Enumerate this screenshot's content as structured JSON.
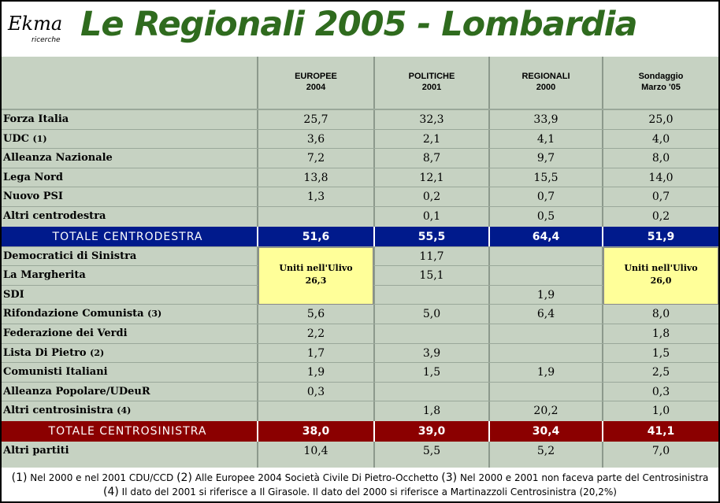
{
  "header": {
    "logo_main": "Ekma",
    "logo_sub": "ricerche",
    "title": "Le Regionali 2005 - Lombardia"
  },
  "columns": [
    {
      "line1": "EUROPEE",
      "line2": "2004"
    },
    {
      "line1": "POLITICHE",
      "line2": "2001"
    },
    {
      "line1": "REGIONALI",
      "line2": "2000"
    },
    {
      "line1": "Sondaggio",
      "line2": "Marzo '05"
    }
  ],
  "centrodestra": [
    {
      "label": "Forza Italia",
      "note": "",
      "values": [
        "25,7",
        "32,3",
        "33,9",
        "25,0"
      ]
    },
    {
      "label": "UDC",
      "note": "(1)",
      "values": [
        "3,6",
        "2,1",
        "4,1",
        "4,0"
      ]
    },
    {
      "label": "Alleanza Nazionale",
      "note": "",
      "values": [
        "7,2",
        "8,7",
        "9,7",
        "8,0"
      ]
    },
    {
      "label": "Lega Nord",
      "note": "",
      "values": [
        "13,8",
        "12,1",
        "15,5",
        "14,0"
      ]
    },
    {
      "label": "Nuovo PSI",
      "note": "",
      "values": [
        "1,3",
        "0,2",
        "0,7",
        "0,7"
      ]
    },
    {
      "label": "Altri centrodestra",
      "note": "",
      "values": [
        "",
        "0,1",
        "0,5",
        "0,2"
      ]
    }
  ],
  "totale_centrodestra": {
    "label": "TOTALE CENTRODESTRA",
    "values": [
      "51,6",
      "55,5",
      "64,4",
      "51,9"
    ],
    "color": "#001a8c"
  },
  "centrosinistra": [
    {
      "label": "Democratici di Sinistra",
      "note": "",
      "values": [
        "",
        "11,7",
        "",
        ""
      ]
    },
    {
      "label": "La Margherita",
      "note": "",
      "values": [
        "",
        "15,1",
        "",
        ""
      ]
    },
    {
      "label": "SDI",
      "note": "",
      "values": [
        "",
        "",
        "1,9",
        ""
      ]
    },
    {
      "label": "Rifondazione Comunista",
      "note": "(3)",
      "values": [
        "5,6",
        "5,0",
        "6,4",
        "8,0"
      ]
    },
    {
      "label": "Federazione dei Verdi",
      "note": "",
      "values": [
        "2,2",
        "",
        "",
        "1,8"
      ]
    },
    {
      "label": "Lista Di Pietro",
      "note": "(2)",
      "values": [
        "1,7",
        "3,9",
        "",
        "1,5"
      ]
    },
    {
      "label": "Comunisti Italiani",
      "note": "",
      "values": [
        "1,9",
        "1,5",
        "1,9",
        "2,5"
      ]
    },
    {
      "label": "Alleanza Popolare/UDeuR",
      "note": "",
      "values": [
        "0,3",
        "",
        "",
        "0,3"
      ]
    },
    {
      "label": "Altri centrosinistra",
      "note": "(4)",
      "values": [
        "",
        "1,8",
        "20,2",
        "1,0"
      ]
    }
  ],
  "ulivo_europee": {
    "line1": "Uniti nell'Ulivo",
    "line2": "26,3"
  },
  "ulivo_sondaggio": {
    "line1": "Uniti nell'Ulivo",
    "line2": "26,0"
  },
  "totale_centrosinistra": {
    "label": "TOTALE CENTROSINISTRA",
    "values": [
      "38,0",
      "39,0",
      "30,4",
      "41,1"
    ],
    "color": "#8b0000"
  },
  "altri_partiti": {
    "label": "Altri partiti",
    "values": [
      "10,4",
      "5,5",
      "5,2",
      "7,0"
    ]
  },
  "footnotes": {
    "n1": "(1)",
    "t1": " Nel 2000 e nel 2001 CDU/CCD ",
    "n2": "(2)",
    "t2": " Alle Europee 2004 Società Civile Di Pietro-Occhetto ",
    "n3": "(3)",
    "t3": " Nel 2000 e 2001 non faceva parte del Centrosinistra ",
    "n4": "(4)",
    "t4": " Il dato del 2001 si riferisce a Il Girasole. Il dato del 2000 si riferisce a Martinazzoli Centrosinistra (20,2%)"
  },
  "colors": {
    "title_green": "#2f6b1e",
    "table_bg": "#c6d2c2",
    "ulivo_bg": "#ffff99"
  }
}
